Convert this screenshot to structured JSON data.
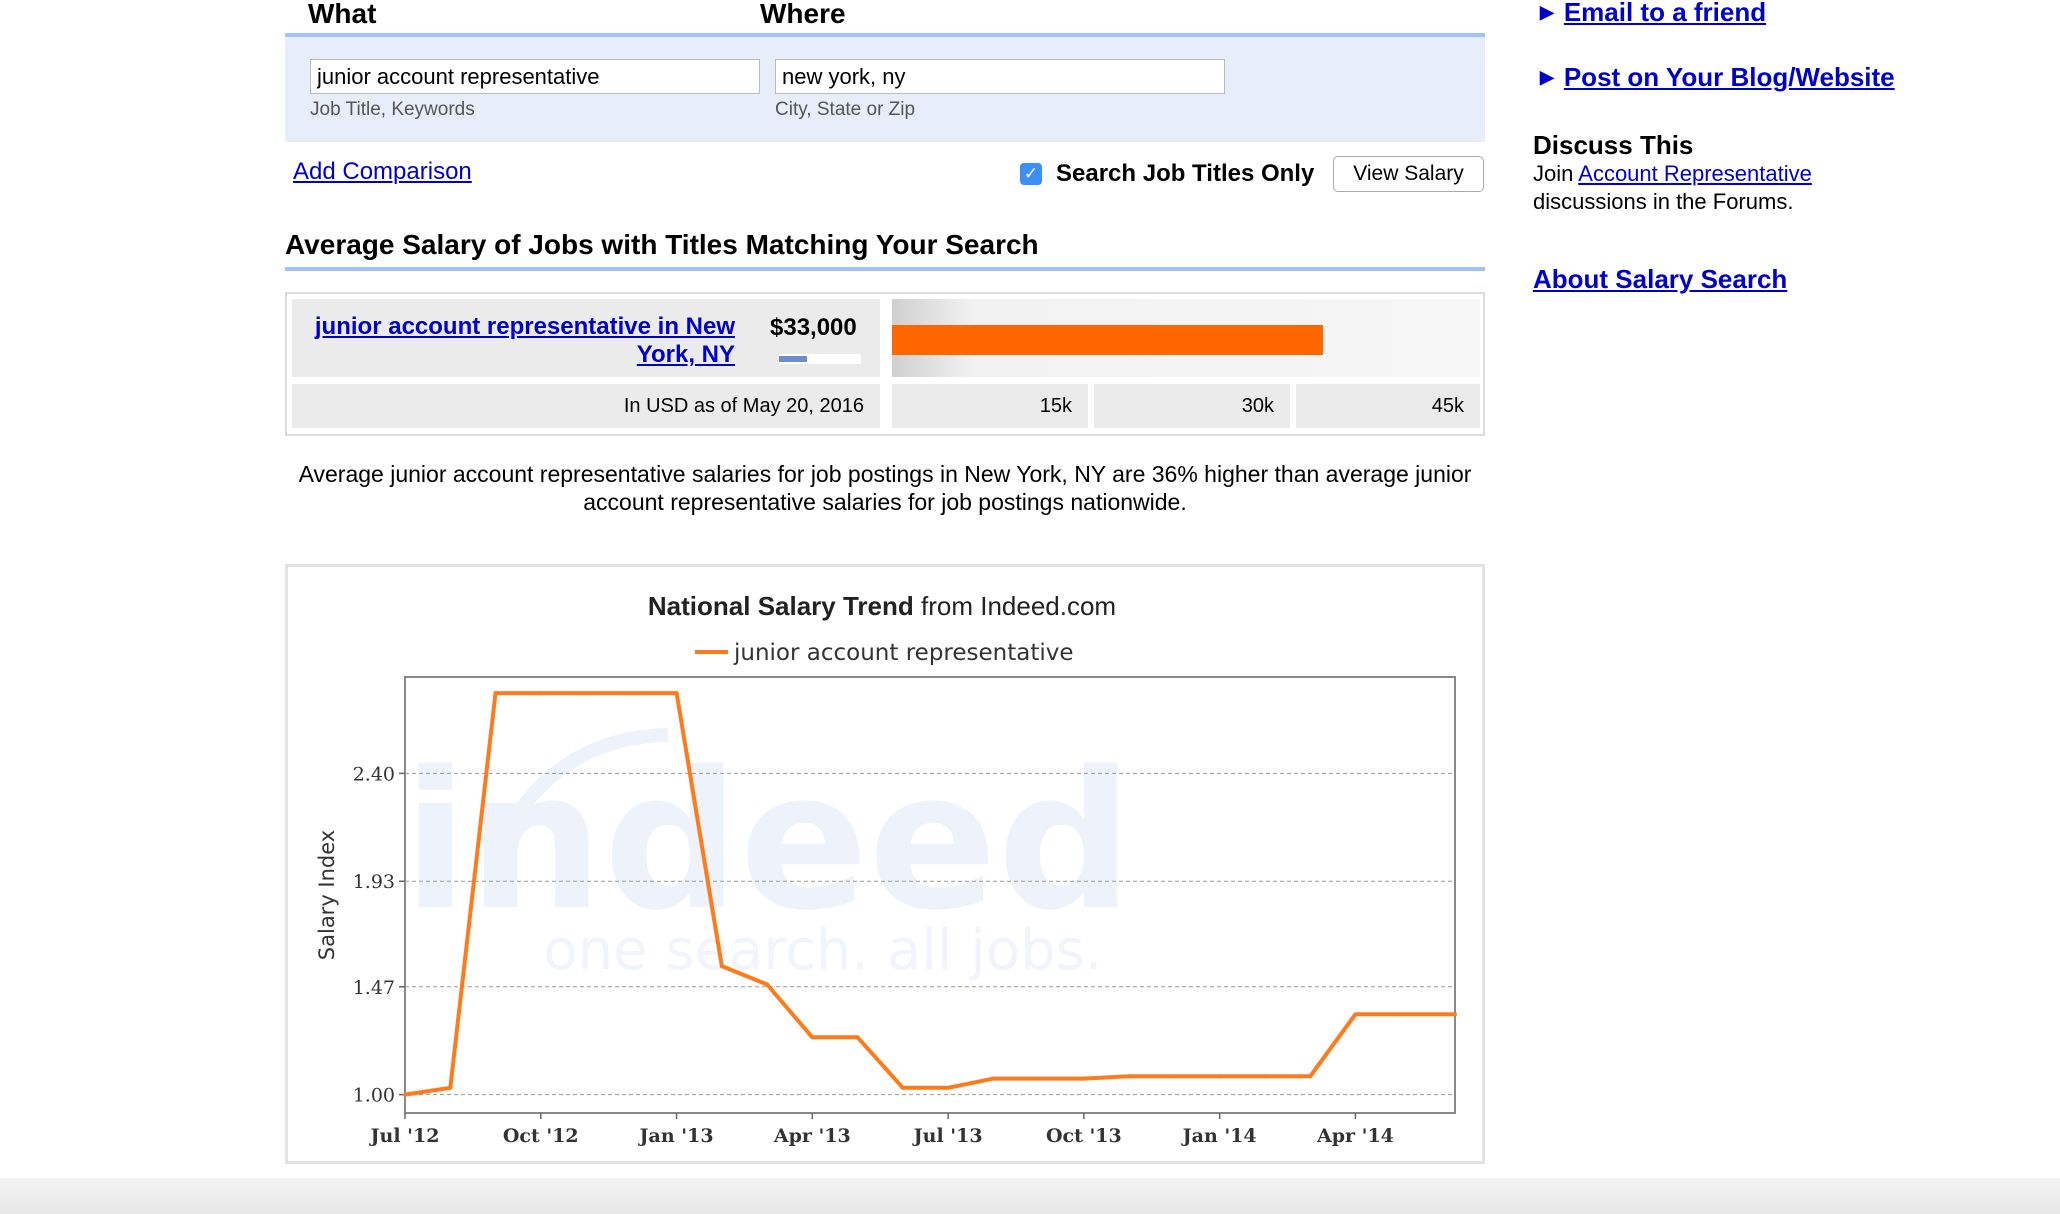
{
  "search": {
    "what_label": "What",
    "where_label": "Where",
    "what_value": "junior account representative",
    "where_value": "new york, ny",
    "what_hint": "Job Title, Keywords",
    "where_hint": "City, State or Zip",
    "add_comparison": "Add Comparison",
    "titles_only_label": "Search Job Titles Only",
    "titles_only_checked": true,
    "view_salary_button": "View Salary"
  },
  "average": {
    "section_title": "Average Salary of Jobs with Titles Matching Your Search",
    "job_link": "junior account representative in New York, NY",
    "amount": "$33,000",
    "salary_value": 33000,
    "scale_max": 45000,
    "date_note": "In USD as of May 20, 2016",
    "scale_labels": [
      "15k",
      "30k",
      "45k"
    ],
    "bar_color": "#ff6600"
  },
  "summary": "Average junior account representative salaries for job postings in New York, NY are 36% higher than average junior account representative salaries for job postings nationwide.",
  "chart_data": {
    "type": "line",
    "title": "National Salary Trend",
    "title_suffix": "from Indeed.com",
    "ylabel": "Salary Index",
    "xlabel": "",
    "watermark": "indeed",
    "watermark_tagline": "one search. all jobs.",
    "y_ticks": [
      "1.00",
      "1.47",
      "1.93",
      "2.40"
    ],
    "x_ticks": [
      "Jul '12",
      "Oct '12",
      "Jan '13",
      "Apr '13",
      "Jul '13",
      "Oct '13",
      "Jan '14",
      "Apr '14"
    ],
    "x_tick_months": [
      0,
      3,
      6,
      9,
      12,
      15,
      18,
      21
    ],
    "x_range_months": [
      0,
      23.2
    ],
    "ylim": [
      0.92,
      2.82
    ],
    "grid": true,
    "legend": "top",
    "series": [
      {
        "name": "junior account representative",
        "color": "#ff7a1a",
        "x_months": [
          0,
          1,
          2,
          3,
          4,
          5,
          6,
          7,
          8,
          9,
          10,
          11,
          12,
          13,
          14,
          15,
          16,
          17,
          18,
          19,
          20,
          21,
          22,
          23.2
        ],
        "values": [
          1.0,
          1.03,
          2.75,
          2.75,
          2.75,
          2.75,
          2.75,
          1.56,
          1.48,
          1.25,
          1.25,
          1.03,
          1.03,
          1.07,
          1.07,
          1.07,
          1.08,
          1.08,
          1.08,
          1.08,
          1.08,
          1.35,
          1.35,
          1.35
        ]
      }
    ]
  },
  "sidebar": {
    "email_link": "Email to a friend",
    "post_link": "Post on Your Blog/Website",
    "discuss_title": "Discuss This",
    "discuss_prefix": "Join",
    "discuss_link": "Account Representative",
    "discuss_suffix": "discussions in the Forums.",
    "about_link": "About Salary Search"
  }
}
